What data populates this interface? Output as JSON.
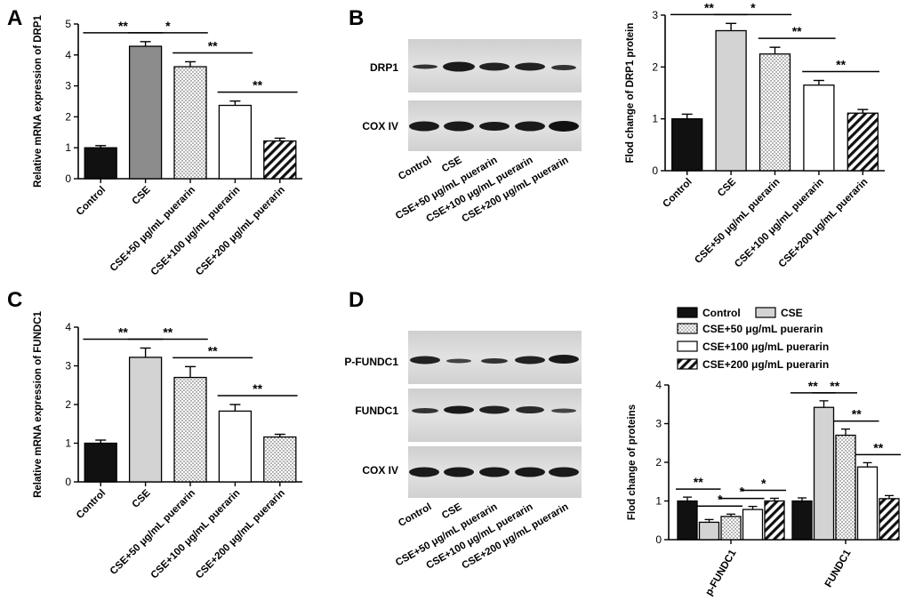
{
  "colors": {
    "black": "#111111",
    "darkgray": "#8c8c8c",
    "lightgray": "#d3d3d3",
    "white": "#ffffff",
    "blot_bg": "#d9d9d9"
  },
  "panels": {
    "A": {
      "label": "A"
    },
    "B": {
      "label": "B",
      "blot_rows": [
        "DRP1",
        "COX IV"
      ],
      "blot_lanes": [
        "Control",
        "CSE",
        "CSE+50 μg/mL puerarin",
        "CSE+100 μg/mL puerarin",
        "CSE+200 μg/mL puerarin"
      ]
    },
    "C": {
      "label": "C"
    },
    "D": {
      "label": "D",
      "blot_rows": [
        "P-FUNDC1",
        "FUNDC1",
        "COX IV"
      ],
      "blot_lanes": [
        "Control",
        "CSE",
        "CSE+50 μg/mL puerarin",
        "CSE+100 μg/mL puerarin",
        "CSE+200 μg/mL puerarin"
      ]
    }
  },
  "chart_data": [
    {
      "id": "A",
      "type": "bar",
      "ylabel": "Relative mRNA expression of  DRP1",
      "ylim": [
        0,
        5
      ],
      "yticks": [
        0,
        1,
        2,
        3,
        4,
        5
      ],
      "categories": [
        "Control",
        "CSE",
        "CSE+50 μg/mL puerarin",
        "CSE+100 μg/mL puerarin",
        "CSE+200 μg/mL puerarin"
      ],
      "values": [
        1.0,
        4.28,
        3.62,
        2.37,
        1.22
      ],
      "errors": [
        0.07,
        0.15,
        0.16,
        0.14,
        0.09
      ],
      "fills": [
        "black",
        "darkgray",
        "dots",
        "white",
        "hatch"
      ],
      "significance": [
        {
          "from": 0,
          "to": 1,
          "label": "**"
        },
        {
          "from": 1,
          "to": 2,
          "label": "*"
        },
        {
          "from": 2,
          "to": 3,
          "label": "**"
        },
        {
          "from": 3,
          "to": 4,
          "label": "**"
        }
      ]
    },
    {
      "id": "B",
      "type": "bar",
      "ylabel": "Flod change of  DRP1 protein",
      "ylim": [
        0,
        3
      ],
      "yticks": [
        0,
        1,
        2,
        3
      ],
      "categories": [
        "Control",
        "CSE",
        "CSE+50 μg/mL puerarin",
        "CSE+100 μg/mL puerarin",
        "CSE+200 μg/mL puerarin"
      ],
      "values": [
        1.0,
        2.7,
        2.25,
        1.65,
        1.11
      ],
      "errors": [
        0.09,
        0.14,
        0.13,
        0.09,
        0.07
      ],
      "fills": [
        "black",
        "lightgray",
        "dots",
        "white",
        "hatch"
      ],
      "significance": [
        {
          "from": 0,
          "to": 1,
          "label": "**"
        },
        {
          "from": 1,
          "to": 2,
          "label": "*"
        },
        {
          "from": 2,
          "to": 3,
          "label": "**"
        },
        {
          "from": 3,
          "to": 4,
          "label": "**"
        }
      ]
    },
    {
      "id": "C",
      "type": "bar",
      "ylabel": "Relative mRNA expression of FUNDC1",
      "ylim": [
        0,
        4
      ],
      "yticks": [
        0,
        1,
        2,
        3,
        4
      ],
      "categories": [
        "Control",
        "CSE",
        "CSE+50 μg/mL puerarin",
        "CSE+100 μg/mL puerarin",
        "CSE+200 μg/mL puerarin"
      ],
      "values": [
        1.0,
        3.22,
        2.7,
        1.83,
        1.16
      ],
      "errors": [
        0.08,
        0.24,
        0.28,
        0.17,
        0.07
      ],
      "fills": [
        "black",
        "lightgray",
        "dots",
        "white",
        "dots"
      ],
      "significance": [
        {
          "from": 0,
          "to": 1,
          "label": "**"
        },
        {
          "from": 1,
          "to": 2,
          "label": "**"
        },
        {
          "from": 2,
          "to": 3,
          "label": "**"
        },
        {
          "from": 3,
          "to": 4,
          "label": "**"
        }
      ]
    },
    {
      "id": "D",
      "type": "bar",
      "ylabel": "Flod change of  proteins",
      "ylim": [
        0,
        4
      ],
      "yticks": [
        0,
        1,
        2,
        3,
        4
      ],
      "groups": [
        "p-FUNDC1",
        "FUNDC1"
      ],
      "legend": [
        "Control",
        "CSE",
        "CSE+50 μg/mL puerarin",
        "CSE+100 μg/mL puerarin",
        "CSE+200 μg/mL puerarin"
      ],
      "fills": [
        "black",
        "lightgray",
        "dots",
        "white",
        "hatch"
      ],
      "series": [
        {
          "group": "p-FUNDC1",
          "values": [
            1.0,
            0.45,
            0.6,
            0.78,
            1.0
          ],
          "errors": [
            0.1,
            0.07,
            0.06,
            0.08,
            0.07
          ]
        },
        {
          "group": "FUNDC1",
          "values": [
            1.0,
            3.42,
            2.7,
            1.88,
            1.06
          ],
          "errors": [
            0.08,
            0.17,
            0.16,
            0.11,
            0.08
          ]
        }
      ],
      "significance": [
        {
          "group": 0,
          "from": 0,
          "to": 1,
          "label": "**"
        },
        {
          "group": 0,
          "from": 1,
          "to": 2,
          "label": "*"
        },
        {
          "group": 0,
          "from": 2,
          "to": 3,
          "label": "*"
        },
        {
          "group": 0,
          "from": 3,
          "to": 4,
          "label": "*"
        },
        {
          "group": 1,
          "from": 0,
          "to": 1,
          "label": "**"
        },
        {
          "group": 1,
          "from": 1,
          "to": 2,
          "label": "**"
        },
        {
          "group": 1,
          "from": 2,
          "to": 3,
          "label": "**"
        },
        {
          "group": 1,
          "from": 3,
          "to": 4,
          "label": "**"
        }
      ]
    }
  ]
}
